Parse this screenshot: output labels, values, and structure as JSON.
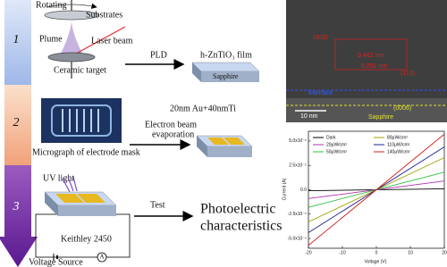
{
  "steps": [
    "1",
    "2",
    "3"
  ],
  "pld": {
    "rotating": "Rotating",
    "substrates": "Substrates",
    "plume": "Plume",
    "laser_beam": "Laser beam",
    "target": "Ceramic target",
    "method": "PLD",
    "film": "h-ZnTiO₃ film",
    "substrate": "Sapphire"
  },
  "electrode": {
    "layers": "20nm Au+40nmTi",
    "method_line1": "Electron beam",
    "method_line2": "evaporation",
    "micrograph": "Micrograph of electrode mask"
  },
  "test": {
    "uv": "UV light",
    "method": "Test",
    "result_line1": "Photoelectric",
    "result_line2": "characteristics",
    "instrument": "Keithley 2450",
    "ammeter": "A",
    "source": "Voltage Source"
  },
  "tem": {
    "plane1": "(003)",
    "d1": "0.462 nm",
    "d2": "0.252 nm",
    "plane2": "(110)",
    "interface": "Interface",
    "scale": "10 nm",
    "plane3": "(0006)",
    "substrate": "Sapphire"
  },
  "chart_data": {
    "type": "line",
    "x_label": "Voltage (V)",
    "y_label": "Current (A)",
    "x": [
      -20,
      20
    ],
    "series": [
      {
        "name": "Dark",
        "color": "#000000",
        "values": [
          -1e-06,
          1e-06
        ]
      },
      {
        "name": "20μW/cm²",
        "color": "#b030b0",
        "values": [
          -9e-06,
          9e-06
        ]
      },
      {
        "name": "50μW/cm²",
        "color": "#30c040",
        "values": [
          -1.8e-05,
          1.8e-05
        ]
      },
      {
        "name": "80μW/cm²",
        "color": "#a0a000",
        "values": [
          -3.3e-05,
          3.3e-05
        ]
      },
      {
        "name": "110μW/cm²",
        "color": "#202090",
        "values": [
          -4.4e-05,
          4.4e-05
        ]
      },
      {
        "name": "140μW/cm²",
        "color": "#d02020",
        "values": [
          -5.7e-05,
          5.7e-05
        ]
      }
    ],
    "xlim": [
      -20,
      20
    ],
    "xticks": [
      -20,
      -10,
      0,
      10,
      20
    ],
    "ylim": [
      -6e-05,
      6e-05
    ],
    "yticks": [
      {
        "value": -5e-05,
        "label": "-5.0x10⁻⁵"
      },
      {
        "value": -2.5e-05,
        "label": "-2.5x10⁻⁵"
      },
      {
        "value": 0,
        "label": "0.0"
      },
      {
        "value": 2.5e-05,
        "label": "2.5x10⁻⁵"
      },
      {
        "value": 5e-05,
        "label": "5.0x10⁻⁵"
      }
    ]
  }
}
